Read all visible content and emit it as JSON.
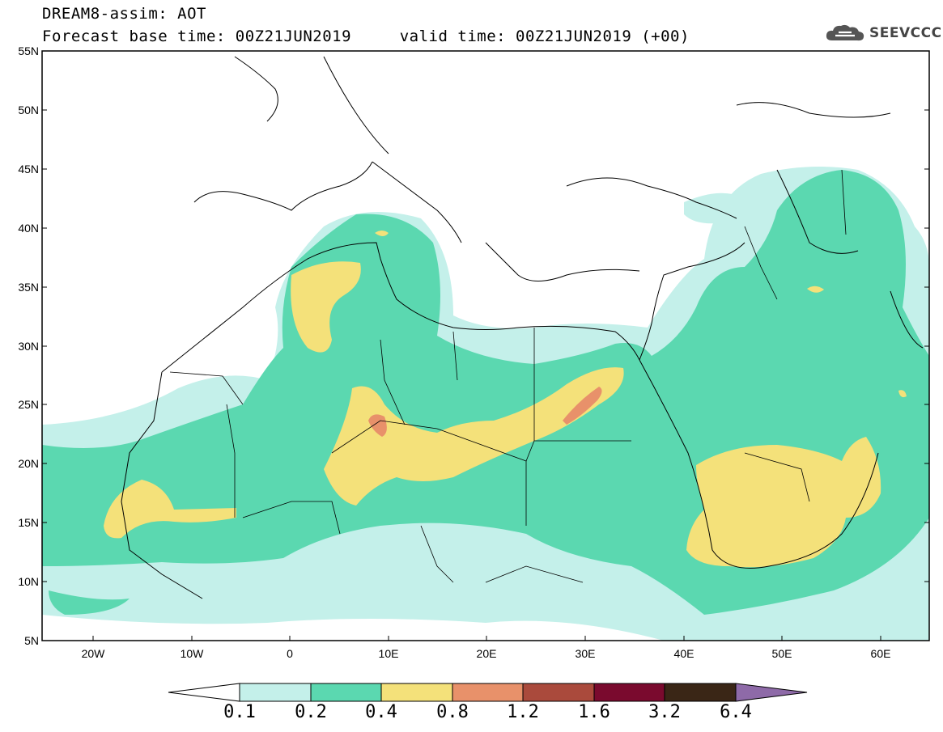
{
  "header": {
    "title_line1": "DREAM8-assim: AOT",
    "title_line2": "Forecast base time: 00Z21JUN2019     valid time: 00Z21JUN2019 (+00)"
  },
  "logo": {
    "text": "SEEVCCC",
    "icon": "cloud-icon"
  },
  "map": {
    "lat_labels": [
      "55N",
      "50N",
      "45N",
      "40N",
      "35N",
      "30N",
      "25N",
      "20N",
      "15N",
      "10N",
      "5N"
    ],
    "lon_labels": [
      "20W",
      "10W",
      "0",
      "10E",
      "20E",
      "30E",
      "40E",
      "50E",
      "60E"
    ],
    "extent": {
      "lon_min": -25,
      "lon_max": 65,
      "lat_min": 5,
      "lat_max": 55
    }
  },
  "colorbar": {
    "levels": [
      "0.1",
      "0.2",
      "0.4",
      "0.8",
      "1.2",
      "1.6",
      "3.2",
      "6.4"
    ],
    "colors": [
      "#ffffff",
      "#c4f0ea",
      "#5bd8b0",
      "#f4e17a",
      "#e8916a",
      "#aa4a3c",
      "#7a0a2e",
      "#3a2616",
      "#8e6aa8"
    ]
  }
}
